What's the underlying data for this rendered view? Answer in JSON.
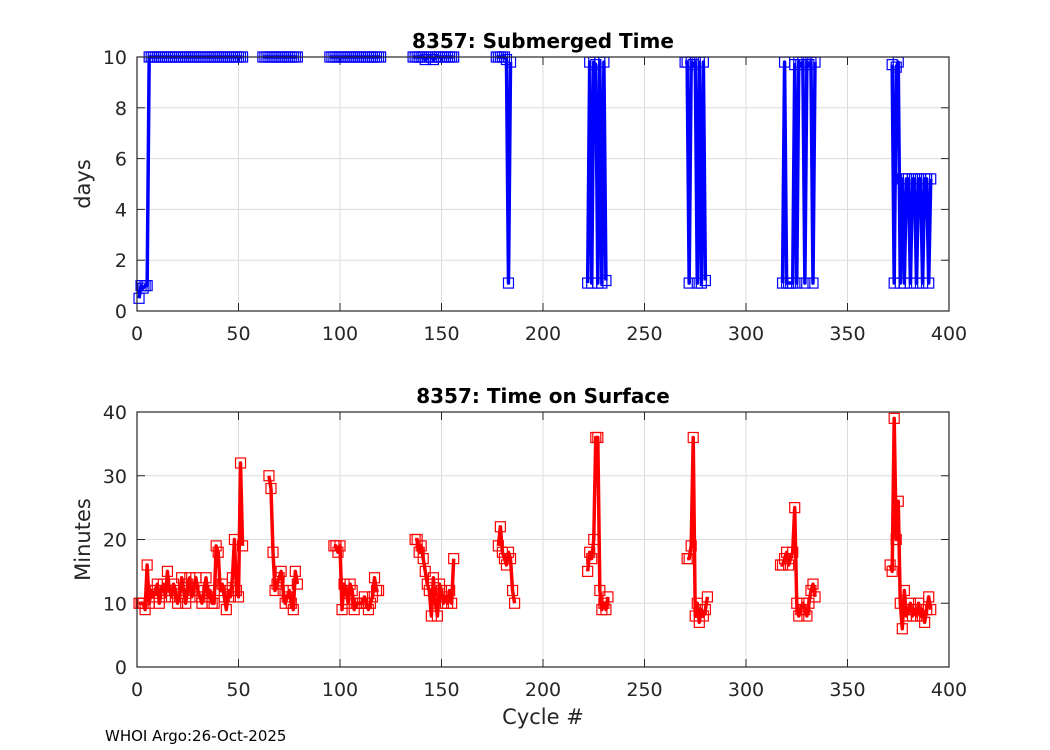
{
  "footer": "WHOI Argo:26-Oct-2025",
  "chart_data": [
    {
      "type": "line",
      "title": "8357: Submerged Time",
      "xlabel": "",
      "ylabel": "days",
      "xlim": [
        0,
        400
      ],
      "ylim": [
        0,
        10
      ],
      "xticks": [
        "0",
        "50",
        "100",
        "150",
        "200",
        "250",
        "300",
        "350",
        "400"
      ],
      "yticks": [
        "0",
        "2",
        "4",
        "6",
        "8",
        "10"
      ],
      "grid": true,
      "color": "#0000ff",
      "marker": "square",
      "segments": [
        {
          "start_cycle": 1,
          "values": [
            0.5,
            1,
            0.9,
            1,
            1,
            10,
            10,
            10,
            10,
            10,
            10,
            10,
            10,
            10,
            10,
            10,
            10,
            10,
            10,
            10,
            10,
            10,
            10,
            10,
            10,
            10,
            10,
            10,
            10,
            10,
            10,
            10,
            10,
            10,
            10,
            10,
            10,
            10,
            10,
            10,
            10,
            10,
            10,
            10,
            10,
            10,
            10,
            10,
            10,
            10,
            10,
            10
          ]
        },
        {
          "start_cycle": 62,
          "values": [
            10,
            10,
            10,
            10,
            10,
            10,
            10,
            10,
            10,
            10,
            10,
            10,
            10,
            10,
            10,
            10,
            10,
            10
          ]
        },
        {
          "start_cycle": 95,
          "values": [
            10,
            10,
            10,
            10,
            10,
            10,
            10,
            10,
            10,
            10,
            10,
            10,
            10,
            10,
            10,
            10,
            10,
            10,
            10,
            10,
            10,
            10,
            10,
            10,
            10,
            10
          ]
        },
        {
          "start_cycle": 136,
          "values": [
            10,
            10,
            10,
            10,
            10,
            10,
            9.9,
            10,
            10,
            10,
            9.9,
            10,
            10,
            10,
            10,
            10,
            10,
            10,
            10,
            10,
            10
          ]
        },
        {
          "start_cycle": 177,
          "values": [
            10,
            10,
            10,
            10,
            10,
            9.9,
            1.1,
            9.8
          ]
        },
        {
          "start_cycle": 222,
          "values": [
            1.1,
            9.8,
            1.1,
            9.8,
            9.7,
            1.1,
            9.8,
            1.1,
            9.8,
            1.2
          ]
        },
        {
          "start_cycle": 270,
          "values": [
            9.8,
            9.8,
            1.1,
            9.8,
            9.7,
            9.8,
            1.1,
            9.8,
            1.1,
            9.8,
            1.2
          ]
        },
        {
          "start_cycle": 318,
          "values": [
            1.1,
            9.8,
            1.1,
            1.1,
            1.1,
            1.1,
            9.7,
            1.1,
            9.8,
            9.7,
            9.8,
            1.1,
            9.8,
            9.7,
            9.8,
            1.1,
            9.8
          ]
        },
        {
          "start_cycle": 372,
          "values": [
            9.7,
            1.1,
            9.6,
            9.8,
            1.1,
            5.2,
            1.1,
            5.2,
            5.2,
            1.1,
            5.2,
            5.2,
            1.1,
            5.2,
            5.2,
            1.1,
            5.2,
            5.2,
            1.1,
            5.2
          ]
        }
      ]
    },
    {
      "type": "line",
      "title": "8357: Time on Surface",
      "xlabel": "Cycle #",
      "ylabel": "Minutes",
      "xlim": [
        0,
        400
      ],
      "ylim": [
        0,
        40
      ],
      "xticks": [
        "0",
        "50",
        "100",
        "150",
        "200",
        "250",
        "300",
        "350",
        "400"
      ],
      "yticks": [
        "0",
        "10",
        "20",
        "30",
        "40"
      ],
      "grid": true,
      "color": "#ff0000",
      "marker": "square",
      "segments": [
        {
          "start_cycle": 1,
          "values": [
            10,
            10,
            10,
            9,
            16,
            10,
            12,
            11,
            12,
            13,
            10,
            12,
            13,
            11,
            15,
            12,
            11,
            13,
            12,
            10,
            11,
            14,
            12,
            10,
            13,
            14,
            11,
            12,
            14,
            12,
            11,
            10,
            12,
            14,
            11,
            12,
            10,
            10,
            19,
            18,
            12,
            13,
            11,
            9,
            12,
            11,
            14,
            20,
            12,
            11,
            32,
            19
          ]
        },
        {
          "start_cycle": 65,
          "values": [
            30,
            28,
            18,
            12,
            13,
            14,
            15,
            12,
            10,
            11,
            12,
            10,
            9,
            15,
            13
          ]
        },
        {
          "start_cycle": 97,
          "values": [
            19,
            19,
            18,
            19,
            9,
            13,
            12,
            10,
            13,
            12,
            9,
            10,
            10,
            10,
            10,
            11,
            10,
            9,
            10,
            11,
            14,
            12,
            12
          ]
        },
        {
          "start_cycle": 137,
          "values": [
            20,
            20,
            18,
            19,
            17,
            15,
            13,
            12,
            8,
            14,
            10,
            8,
            13,
            12,
            10,
            11,
            10,
            12,
            10,
            17
          ]
        },
        {
          "start_cycle": 178,
          "values": [
            19,
            22,
            18,
            17,
            16,
            18,
            17,
            12,
            10
          ]
        },
        {
          "start_cycle": 222,
          "values": [
            15,
            18,
            17,
            20,
            36,
            36,
            12,
            9,
            10,
            9,
            11
          ]
        },
        {
          "start_cycle": 271,
          "values": [
            17,
            17,
            19,
            36,
            8,
            10,
            7,
            9,
            8,
            9,
            11
          ]
        },
        {
          "start_cycle": 317,
          "values": [
            16,
            16,
            17,
            18,
            16,
            17,
            18,
            25,
            10,
            8,
            9,
            10,
            9,
            8,
            10,
            12,
            13,
            11
          ]
        },
        {
          "start_cycle": 371,
          "values": [
            16,
            15,
            39,
            20,
            26,
            10,
            6,
            12,
            8,
            9,
            10,
            8,
            9,
            8,
            10,
            8,
            9,
            7,
            9,
            11,
            9
          ]
        }
      ]
    }
  ]
}
